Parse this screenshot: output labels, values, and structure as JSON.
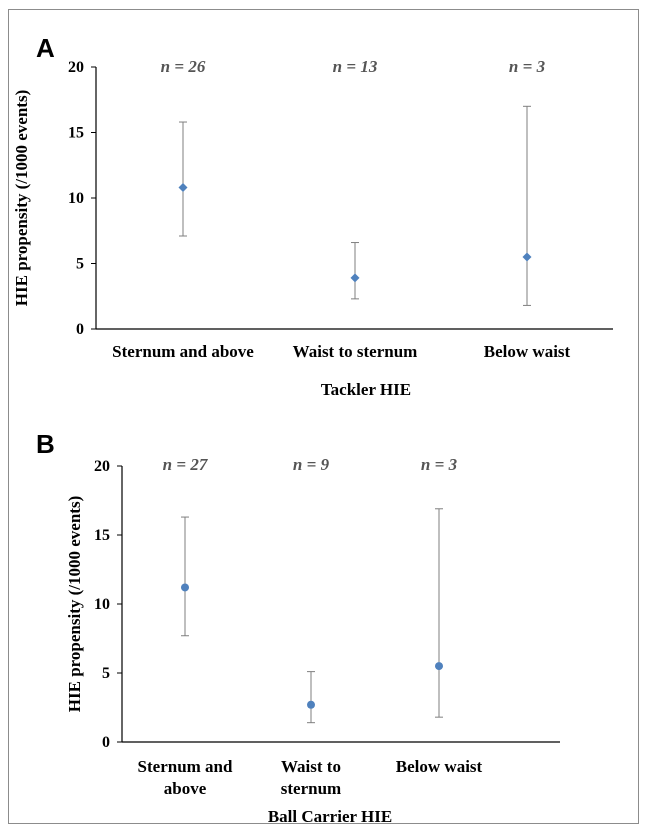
{
  "chart_data": [
    {
      "panel": "A",
      "type": "scatter",
      "xlabel": "Tackler HIE",
      "ylabel": "HIE propensity (/1000 events)",
      "ylim": [
        0,
        20
      ],
      "yticks": [
        0,
        5,
        10,
        15,
        20
      ],
      "marker": "diamond",
      "categories": [
        [
          "Sternum and above"
        ],
        [
          "Waist to sternum"
        ],
        [
          "Below waist"
        ]
      ],
      "n_labels": [
        "n = 26",
        "n = 13",
        "n = 3"
      ],
      "values": [
        10.8,
        3.9,
        5.5
      ],
      "error_low": [
        7.1,
        2.3,
        1.8
      ],
      "error_high": [
        15.8,
        6.6,
        17.0
      ],
      "color": "#4f81bd"
    },
    {
      "panel": "B",
      "type": "scatter",
      "xlabel": "Ball Carrier HIE",
      "ylabel": "HIE propensity (/1000 events)",
      "ylim": [
        0,
        20
      ],
      "yticks": [
        0,
        5,
        10,
        15,
        20
      ],
      "marker": "circle",
      "categories": [
        [
          "Sternum and",
          "above"
        ],
        [
          "Waist to",
          "sternum"
        ],
        [
          "Below waist"
        ]
      ],
      "n_labels": [
        "n = 27",
        "n = 9",
        "n = 3"
      ],
      "values": [
        11.2,
        2.7,
        5.5
      ],
      "error_low": [
        7.7,
        1.4,
        1.8
      ],
      "error_high": [
        16.3,
        5.1,
        16.9
      ],
      "color": "#4f81bd"
    }
  ]
}
